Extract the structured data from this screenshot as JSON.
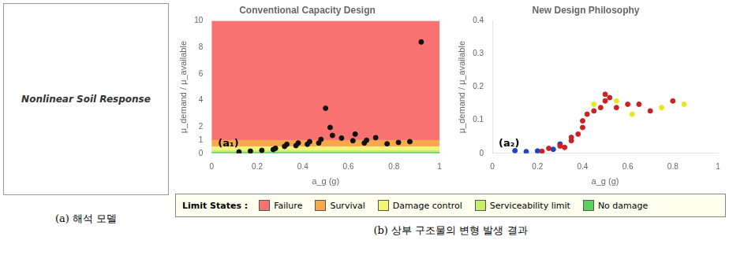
{
  "chart_data": [
    {
      "type": "scatter",
      "title": "Conventional Capacity Design",
      "xlabel": "a_g (g)",
      "ylabel": "μ_demand / μ_available",
      "xlim": [
        0,
        1
      ],
      "ylim": [
        0,
        10
      ],
      "xticks": [
        0,
        0.2,
        0.4,
        0.6,
        0.8,
        1
      ],
      "yticks": [
        0,
        1,
        2,
        4,
        6,
        8,
        10
      ],
      "grid": false,
      "annotations": [
        "(a₁)"
      ],
      "bands": [
        {
          "name": "Failure",
          "from": 1.0,
          "to": 10.0,
          "color": "#f87272"
        },
        {
          "name": "Survival",
          "from": 0.5,
          "to": 1.0,
          "color": "#f7a84a"
        },
        {
          "name": "Damage control",
          "from": 0.25,
          "to": 0.5,
          "color": "#f5f575"
        },
        {
          "name": "Serviceability limit",
          "from": 0.1,
          "to": 0.25,
          "color": "#c8f06c"
        },
        {
          "name": "No damage",
          "from": 0.0,
          "to": 0.1,
          "color": "#5dcf5d"
        }
      ],
      "series": [
        {
          "color": "#111111",
          "x": [
            0.12,
            0.17,
            0.22,
            0.27,
            0.28,
            0.32,
            0.33,
            0.37,
            0.38,
            0.42,
            0.43,
            0.47,
            0.48,
            0.5,
            0.52,
            0.53,
            0.57,
            0.62,
            0.63,
            0.67,
            0.68,
            0.72,
            0.77,
            0.82,
            0.87,
            0.92
          ],
          "values": [
            0.11,
            0.16,
            0.22,
            0.28,
            0.38,
            0.52,
            0.68,
            0.58,
            0.78,
            0.68,
            0.88,
            0.78,
            1.05,
            3.4,
            1.95,
            1.35,
            1.15,
            0.95,
            1.45,
            0.78,
            0.98,
            1.18,
            0.72,
            0.82,
            0.88,
            8.4
          ]
        }
      ]
    },
    {
      "type": "scatter",
      "title": "New Design Philosophy",
      "xlabel": "a_g (g)",
      "ylabel": "μ_demand / μ_available",
      "xlim": [
        0,
        1
      ],
      "ylim": [
        0,
        0.4
      ],
      "xticks": [
        0,
        0.2,
        0.4,
        0.6,
        0.8,
        1
      ],
      "yticks": [
        0,
        0.1,
        0.2,
        0.3,
        0.4
      ],
      "grid": false,
      "annotations": [
        "(a₂)"
      ],
      "series": [
        {
          "x": [
            0.1,
            0.15,
            0.2,
            0.22,
            0.25,
            0.27,
            0.3,
            0.3,
            0.32,
            0.35,
            0.35,
            0.38,
            0.4,
            0.4,
            0.42,
            0.45,
            0.45,
            0.48,
            0.5,
            0.5,
            0.52,
            0.55,
            0.55,
            0.6,
            0.62,
            0.65,
            0.7,
            0.75,
            0.8,
            0.85
          ],
          "values": [
            0.008,
            0.005,
            0.007,
            0.006,
            0.015,
            0.012,
            0.028,
            0.022,
            0.018,
            0.038,
            0.048,
            0.058,
            0.078,
            0.098,
            0.118,
            0.128,
            0.148,
            0.138,
            0.158,
            0.178,
            0.168,
            0.138,
            0.158,
            0.148,
            0.118,
            0.148,
            0.128,
            0.138,
            0.158,
            0.148
          ],
          "colors": [
            "#2244bb",
            "#2244bb",
            "#2244bb",
            "#cc2222",
            "#cc2222",
            "#2244bb",
            "#2244bb",
            "#cc2222",
            "#cc2222",
            "#cc2222",
            "#cc2222",
            "#cc2222",
            "#cc2222",
            "#cc2222",
            "#cc2222",
            "#cc2222",
            "#e8e820",
            "#cc2222",
            "#cc2222",
            "#cc2222",
            "#cc2222",
            "#cc2222",
            "#e8e820",
            "#cc2222",
            "#e8e820",
            "#cc2222",
            "#cc2222",
            "#e8e820",
            "#cc2222",
            "#e8e820"
          ]
        }
      ]
    }
  ],
  "legend_title": "Limit States :",
  "annotations": [
    "Nonlinear Soil Response",
    "(a)  해석  모델",
    "(b)  상부  구조물의  변형  발생  결과"
  ]
}
